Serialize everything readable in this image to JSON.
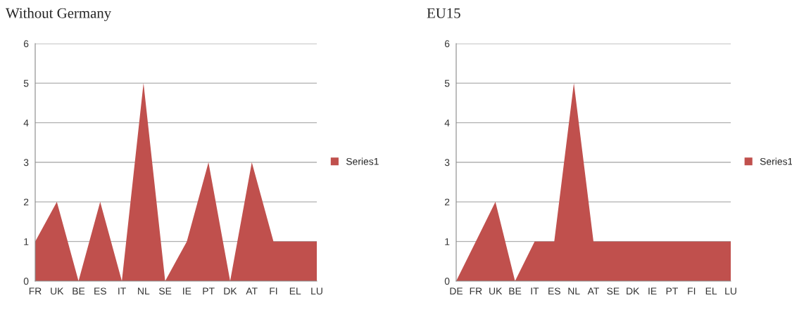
{
  "chart_data": [
    {
      "type": "area",
      "title": "Without Germany",
      "categories": [
        "FR",
        "UK",
        "BE",
        "ES",
        "IT",
        "NL",
        "SE",
        "IE",
        "PT",
        "DK",
        "AT",
        "FI",
        "EL",
        "LU"
      ],
      "series": [
        {
          "name": "Series1",
          "color": "#c0504d",
          "values": [
            1,
            2,
            0,
            2,
            0,
            5,
            0,
            1,
            3,
            0,
            3,
            1,
            1,
            1
          ]
        }
      ],
      "ylim": [
        0,
        6
      ],
      "yticks": [
        0,
        1,
        2,
        3,
        4,
        5,
        6
      ],
      "grid": "y",
      "legend": "right"
    },
    {
      "type": "area",
      "title": "EU15",
      "categories": [
        "DE",
        "FR",
        "UK",
        "BE",
        "IT",
        "ES",
        "NL",
        "AT",
        "SE",
        "DK",
        "IE",
        "PT",
        "FI",
        "EL",
        "LU"
      ],
      "series": [
        {
          "name": "Series1",
          "color": "#c0504d",
          "values": [
            0,
            1,
            2,
            0,
            1,
            1,
            5,
            1,
            1,
            1,
            1,
            1,
            1,
            1,
            1
          ]
        }
      ],
      "ylim": [
        0,
        6
      ],
      "yticks": [
        0,
        1,
        2,
        3,
        4,
        5,
        6
      ],
      "grid": "y",
      "legend": "right"
    }
  ]
}
